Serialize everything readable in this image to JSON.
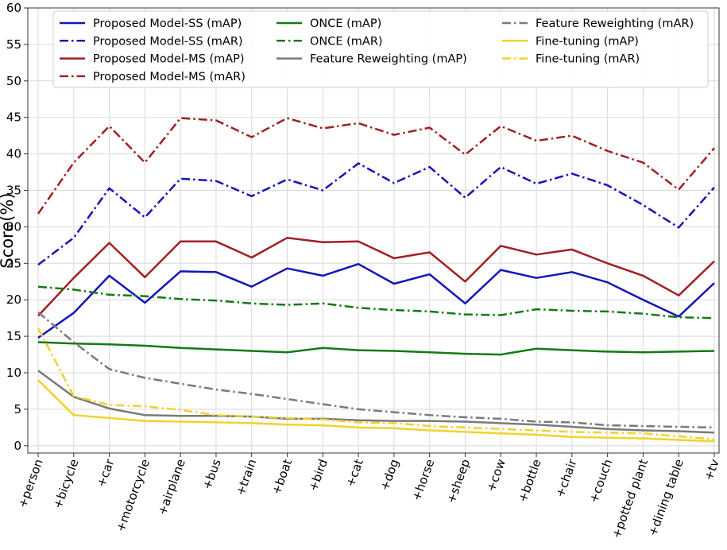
{
  "chart_data": {
    "type": "line",
    "xlabel": "",
    "ylabel": "Score(%)",
    "ylim": [
      -1,
      60
    ],
    "yticks": [
      0,
      5,
      10,
      15,
      20,
      25,
      30,
      35,
      40,
      45,
      50,
      55,
      60
    ],
    "grid": true,
    "legend_position": "top",
    "categories": [
      "+person",
      "+bicycle",
      "+car",
      "+motorcycle",
      "+airplane",
      "+bus",
      "+train",
      "+boat",
      "+bird",
      "+cat",
      "+dog",
      "+horse",
      "+sheep",
      "+cow",
      "+bottle",
      "+chair",
      "+couch",
      "+potted plant",
      "+dining table",
      "+tv"
    ],
    "series": [
      {
        "name": "Proposed Model-SS (mAP)",
        "color": "#1515b8",
        "dash": "solid",
        "values": [
          14.8,
          18.2,
          23.3,
          19.6,
          23.9,
          23.8,
          21.8,
          24.3,
          23.3,
          24.9,
          22.2,
          23.5,
          19.5,
          24.1,
          23.0,
          23.8,
          22.4,
          20.0,
          17.7,
          22.3
        ]
      },
      {
        "name": "Proposed Model-SS (mAR)",
        "color": "#1515b8",
        "dash": "dashdot",
        "values": [
          24.8,
          28.5,
          35.3,
          31.3,
          36.6,
          36.3,
          34.2,
          36.5,
          35.0,
          38.7,
          36.0,
          38.2,
          34.0,
          38.2,
          35.9,
          37.3,
          35.7,
          33.0,
          29.9,
          35.4
        ]
      },
      {
        "name": "Proposed Model-MS (mAP)",
        "color": "#a01f22",
        "dash": "solid",
        "values": [
          17.8,
          23.0,
          27.8,
          23.1,
          28.0,
          28.0,
          25.8,
          28.5,
          27.9,
          28.0,
          25.7,
          26.5,
          22.5,
          27.4,
          26.2,
          26.9,
          25.0,
          23.3,
          20.6,
          25.3
        ]
      },
      {
        "name": "Proposed Model-MS (mAR)",
        "color": "#a01f22",
        "dash": "dashdot",
        "values": [
          31.8,
          38.8,
          43.8,
          38.8,
          44.9,
          44.6,
          42.3,
          44.9,
          43.5,
          44.2,
          42.6,
          43.6,
          39.9,
          43.8,
          41.8,
          42.5,
          40.4,
          38.8,
          35.1,
          40.8
        ]
      },
      {
        "name": "ONCE (mAP)",
        "color": "#137a13",
        "dash": "solid",
        "values": [
          14.2,
          14.0,
          13.9,
          13.7,
          13.4,
          13.2,
          13.0,
          12.8,
          13.4,
          13.1,
          13.0,
          12.8,
          12.6,
          12.5,
          13.3,
          13.1,
          12.9,
          12.8,
          12.9,
          13.0
        ]
      },
      {
        "name": "ONCE (mAR)",
        "color": "#137a13",
        "dash": "dashdot",
        "values": [
          21.8,
          21.4,
          20.7,
          20.5,
          20.1,
          19.9,
          19.5,
          19.3,
          19.5,
          18.9,
          18.6,
          18.4,
          18.0,
          17.9,
          18.7,
          18.5,
          18.4,
          18.1,
          17.6,
          17.5
        ]
      },
      {
        "name": "Feature Reweighting (mAP)",
        "color": "#7a7a7a",
        "dash": "solid",
        "values": [
          10.3,
          6.7,
          5.1,
          4.2,
          4.1,
          4.1,
          4.0,
          3.7,
          3.7,
          3.5,
          3.4,
          3.4,
          3.3,
          3.1,
          2.9,
          2.6,
          2.3,
          2.1,
          2.0,
          1.8
        ]
      },
      {
        "name": "Feature Reweighting (mAR)",
        "color": "#7a7a7a",
        "dash": "dashdot",
        "values": [
          18.3,
          14.2,
          10.5,
          9.3,
          8.5,
          7.7,
          7.1,
          6.4,
          5.7,
          5.0,
          4.6,
          4.2,
          3.9,
          3.7,
          3.3,
          3.2,
          2.8,
          2.7,
          2.6,
          2.5
        ]
      },
      {
        "name": "Fine-tuning (mAP)",
        "color": "#f2d22c",
        "dash": "solid",
        "values": [
          9.0,
          4.2,
          3.8,
          3.4,
          3.3,
          3.2,
          3.1,
          2.9,
          2.8,
          2.5,
          2.4,
          2.1,
          1.9,
          1.7,
          1.5,
          1.2,
          1.1,
          1.0,
          0.8,
          0.6
        ]
      },
      {
        "name": "Fine-tuning (mAR)",
        "color": "#f2d22c",
        "dash": "dashdot",
        "values": [
          16.1,
          6.8,
          5.6,
          5.4,
          4.9,
          4.2,
          4.0,
          3.8,
          3.6,
          3.2,
          3.1,
          2.7,
          2.5,
          2.3,
          2.1,
          1.9,
          1.8,
          1.7,
          1.3,
          0.9
        ]
      }
    ]
  }
}
